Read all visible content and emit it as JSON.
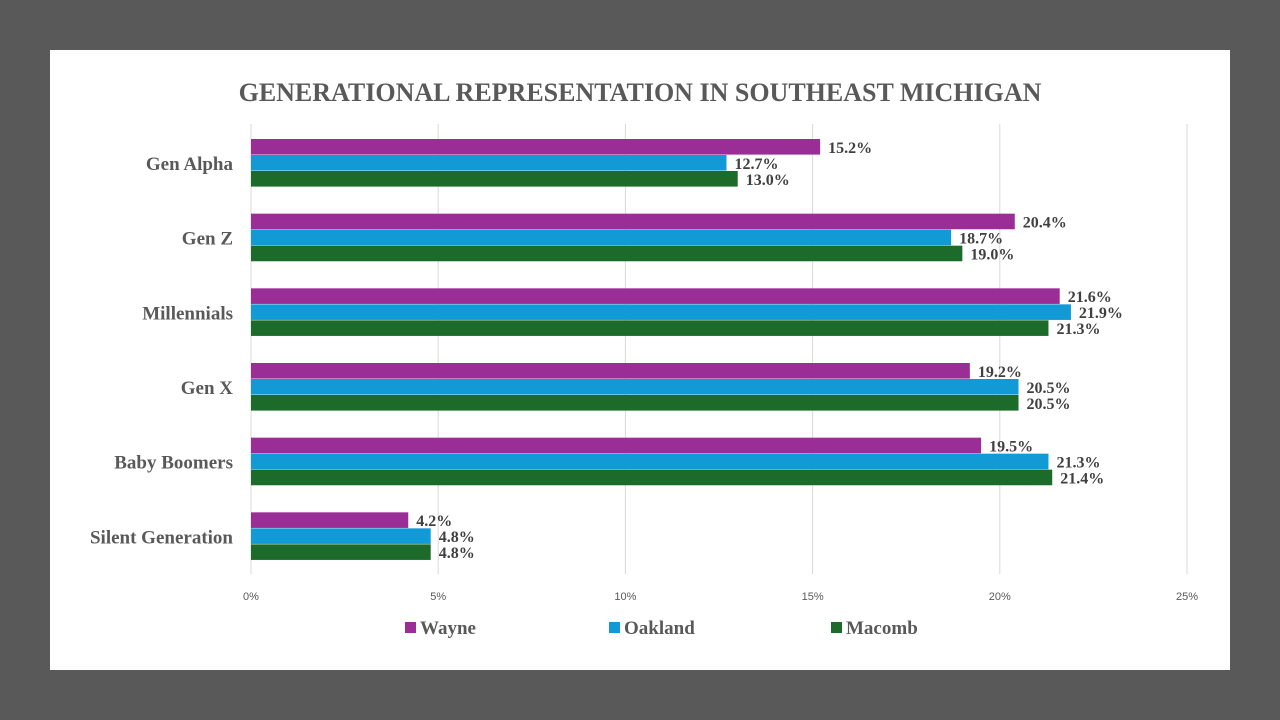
{
  "chart_data": {
    "type": "bar",
    "orientation": "horizontal",
    "title": "GENERATIONAL REPRESENTATION IN SOUTHEAST MICHIGAN",
    "categories": [
      "Gen Alpha",
      "Gen Z",
      "Millennials",
      "Gen X",
      "Baby Boomers",
      "Silent Generation"
    ],
    "series": [
      {
        "name": "Wayne",
        "color": "#9b2d96",
        "values": [
          15.2,
          20.4,
          21.6,
          19.2,
          19.5,
          4.2
        ],
        "labels": [
          "15.2%",
          "20.4%",
          "21.6%",
          "19.2%",
          "19.5%",
          "4.2%"
        ]
      },
      {
        "name": "Oakland",
        "color": "#129ad7",
        "values": [
          12.7,
          18.7,
          21.9,
          20.5,
          21.3,
          4.8
        ],
        "labels": [
          "12.7%",
          "18.7%",
          "21.9%",
          "20.5%",
          "21.3%",
          "4.8%"
        ]
      },
      {
        "name": "Macomb",
        "color": "#1c6b2a",
        "values": [
          13.0,
          19.0,
          21.3,
          20.5,
          21.4,
          4.8
        ],
        "labels": [
          "13.0%",
          "19.0%",
          "21.3%",
          "20.5%",
          "21.4%",
          "4.8%"
        ]
      }
    ],
    "xticks": [
      0,
      5,
      10,
      15,
      20,
      25
    ],
    "xtick_labels": [
      "0%",
      "5%",
      "10%",
      "15%",
      "20%",
      "25%"
    ],
    "xlim": [
      0,
      25
    ],
    "xlabel": "",
    "ylabel": "",
    "grid": true,
    "legend_position": "bottom"
  }
}
